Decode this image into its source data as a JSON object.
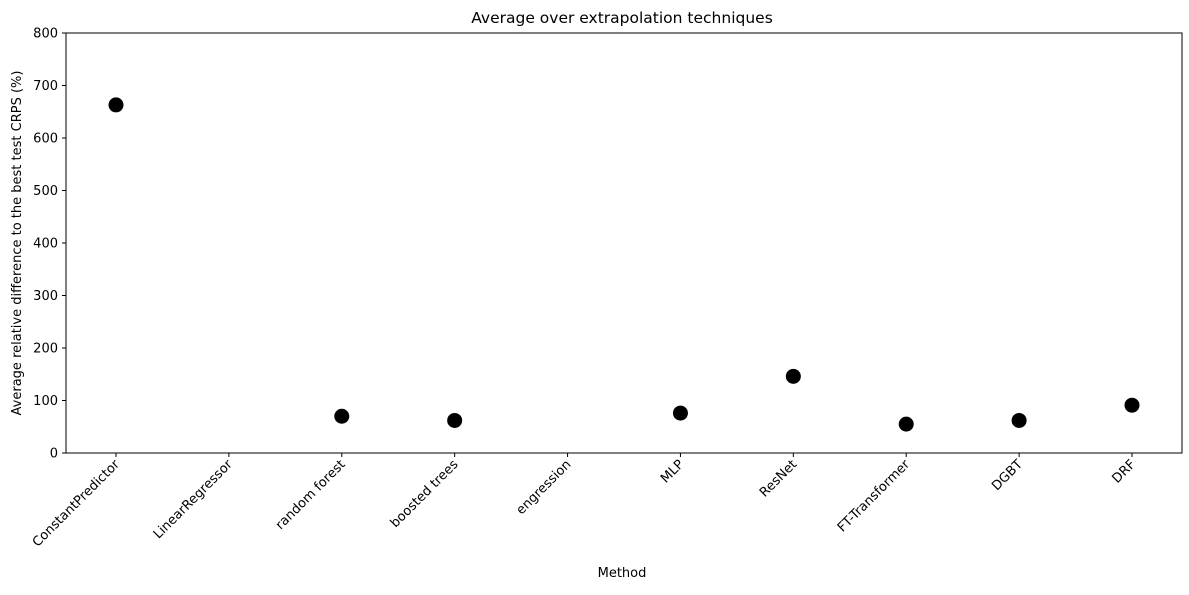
{
  "chart_data": {
    "type": "scatter",
    "title": "Average over extrapolation techniques",
    "xlabel": "Method",
    "ylabel": "Average relative difference to the best test CRPS (%)",
    "categories": [
      "ConstantPredictor",
      "LinearRegressor",
      "random forest",
      "boosted trees",
      "engression",
      "MLP",
      "ResNet",
      "FT-Transformer",
      "DGBT",
      "DRF"
    ],
    "values": [
      663,
      null,
      70,
      62,
      null,
      76,
      146,
      55,
      62,
      91
    ],
    "yticks": [
      0,
      100,
      200,
      300,
      400,
      500,
      600,
      700,
      800
    ],
    "ylim": [
      0,
      800
    ],
    "grid": false,
    "legend": "none",
    "marker_color": "#000000"
  }
}
